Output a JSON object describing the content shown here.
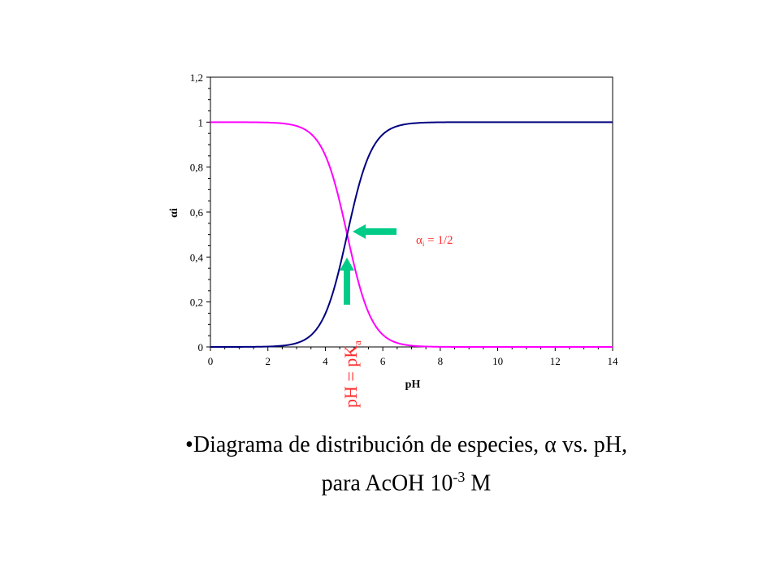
{
  "chart_data": {
    "type": "line",
    "xlabel_symbol": "pH",
    "ylabel_symbol": "αi",
    "xlim": [
      0,
      14
    ],
    "ylim": [
      0,
      1.2
    ],
    "x_ticks": [
      0,
      2,
      4,
      6,
      8,
      10,
      12,
      14
    ],
    "x_tick_labels": [
      "0",
      "2",
      "4",
      "6",
      "8",
      "10",
      "12",
      "14"
    ],
    "y_ticks": [
      0,
      0.2,
      0.4,
      0.6,
      0.8,
      1.0,
      1.2
    ],
    "y_tick_labels": [
      "0",
      "0,2",
      "0,4",
      "0,6",
      "0,8",
      "1",
      "1,2"
    ],
    "grid": false,
    "pKa": 4.76,
    "series": [
      {
        "color": "#ff00ff",
        "description_formula": "alpha_HA = 1/(1+10^(pH-pKa))",
        "x": [
          0,
          2,
          3,
          3.5,
          4,
          4.5,
          4.76,
          5,
          5.5,
          6,
          6.5,
          7,
          7.5,
          8,
          14
        ],
        "y": [
          1.0,
          0.998,
          0.983,
          0.948,
          0.852,
          0.645,
          0.5,
          0.365,
          0.154,
          0.054,
          0.018,
          0.006,
          0.002,
          0.0,
          0.0
        ]
      },
      {
        "color": "#000080",
        "x": [
          0,
          2,
          3,
          3.5,
          4,
          4.5,
          4.76,
          5,
          5.5,
          6,
          6.5,
          7,
          7.5,
          8,
          14
        ],
        "y": [
          0.0,
          0.002,
          0.017,
          0.052,
          0.148,
          0.355,
          0.5,
          0.635,
          0.846,
          0.946,
          0.982,
          0.994,
          0.998,
          1.0,
          1.0
        ]
      }
    ],
    "annotations": {
      "alpha_label_main": "α",
      "alpha_label_sub": "i",
      "alpha_label_rest": " = 1/2",
      "pka_label_main": "pH = pK",
      "pka_label_sub": "a",
      "arrow_color": "#00cc88"
    }
  },
  "caption": {
    "line1_bullet": "•",
    "line1_text": "Diagrama de distribución de especies, ",
    "line1_alpha": "α",
    "line1_end": " vs. pH,",
    "line2_text": "para AcOH 10",
    "line2_sup": "-3",
    "line2_end": " M"
  }
}
